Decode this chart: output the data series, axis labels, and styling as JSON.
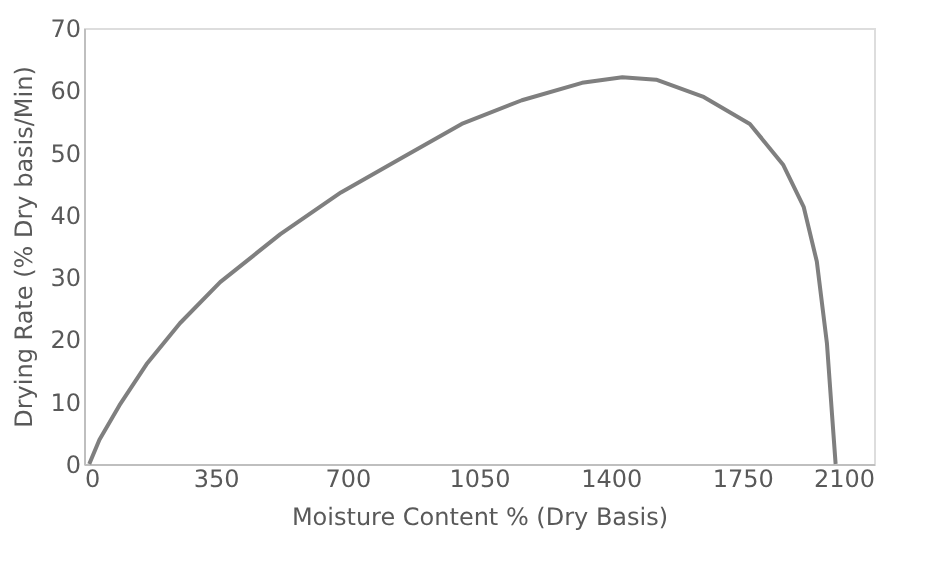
{
  "chart_data": {
    "type": "line",
    "xlabel": "Moisture Content % (Dry Basis)",
    "ylabel": "Drying Rate (% Dry basis/Min)",
    "xlim": [
      0,
      2100
    ],
    "xticks": [
      0,
      350,
      700,
      1050,
      1400,
      1750,
      2100
    ],
    "ylim": [
      0,
      70
    ],
    "yticks": [
      0,
      10,
      20,
      30,
      40,
      50,
      60,
      70
    ],
    "grid": false,
    "legend": false,
    "marker": "none",
    "line_style": "solid",
    "series": [
      {
        "color": "#7f7f7f",
        "x": [
          14,
          41,
          94,
          166,
          255,
          362,
          522,
          683,
          843,
          1004,
          1164,
          1324,
          1431,
          1521,
          1645,
          1770,
          1859,
          1913,
          1948,
          1975,
          1988,
          1998
        ],
        "values": [
          0,
          3.9,
          9.4,
          16,
          22.6,
          29.2,
          36.9,
          43.6,
          49.1,
          54.6,
          58.4,
          61.2,
          62.1,
          61.7,
          59,
          54.6,
          48,
          41.3,
          32.5,
          19.3,
          8.3,
          0
        ]
      }
    ]
  }
}
